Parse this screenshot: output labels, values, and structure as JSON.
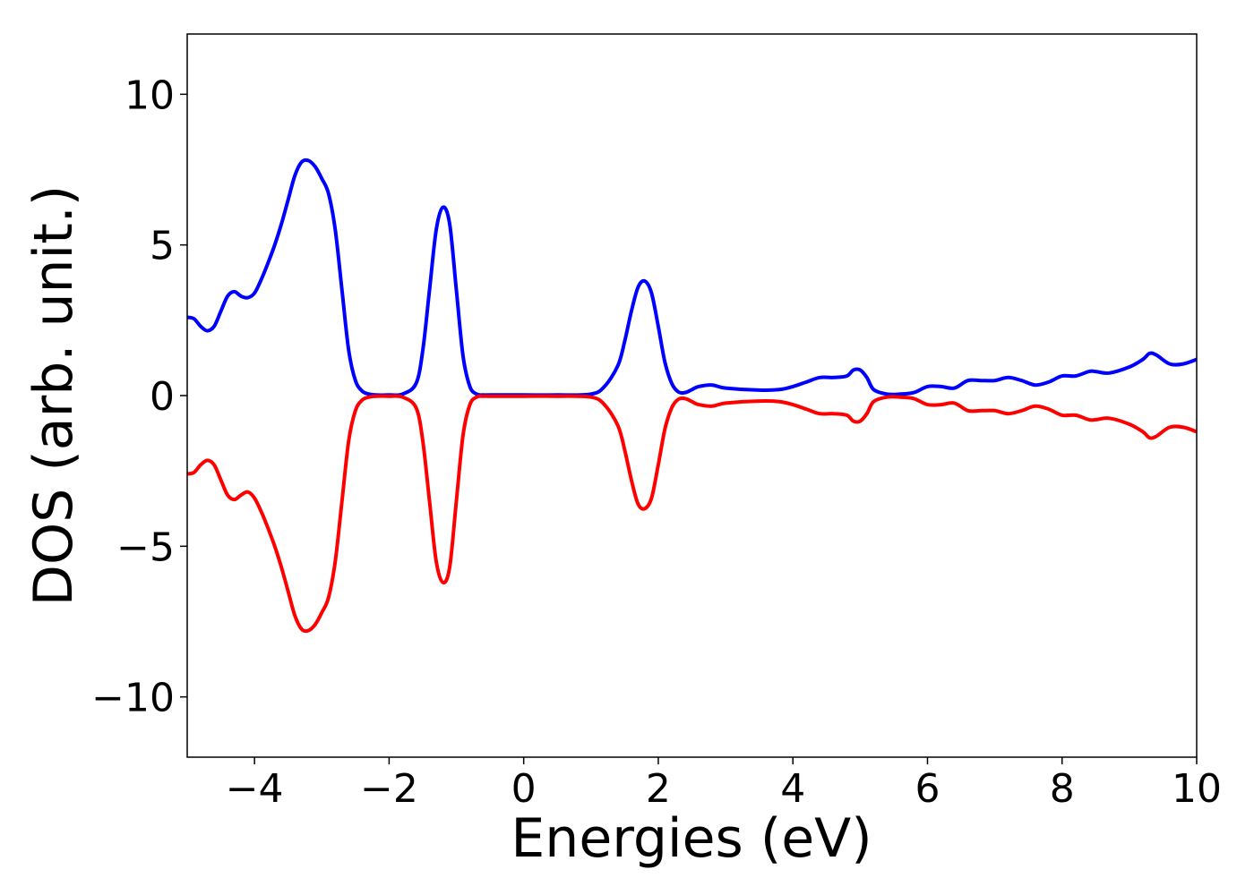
{
  "chart_data": {
    "type": "line",
    "title": "",
    "xlabel": "Energies (eV)",
    "ylabel": "DOS (arb. unit.)",
    "xlim": [
      -5,
      10
    ],
    "ylim": [
      -12,
      12
    ],
    "xticks": [
      -4,
      -2,
      0,
      2,
      4,
      6,
      8,
      10
    ],
    "xtick_labels": [
      "−4",
      "−2",
      "0",
      "2",
      "4",
      "6",
      "8",
      "10"
    ],
    "yticks": [
      -10,
      -5,
      0,
      5,
      10
    ],
    "ytick_labels": [
      "−10",
      "−5",
      "0",
      "5",
      "10"
    ],
    "grid": false,
    "series": [
      {
        "color": "#0000ff",
        "x": [
          -5.0,
          -4.9,
          -4.8,
          -4.7,
          -4.6,
          -4.5,
          -4.4,
          -4.3,
          -4.2,
          -4.1,
          -4.0,
          -3.9,
          -3.8,
          -3.7,
          -3.6,
          -3.5,
          -3.4,
          -3.3,
          -3.2,
          -3.1,
          -3.0,
          -2.9,
          -2.8,
          -2.7,
          -2.6,
          -2.5,
          -2.4,
          -2.3,
          -2.2,
          -2.0,
          -1.8,
          -1.6,
          -1.5,
          -1.4,
          -1.3,
          -1.2,
          -1.1,
          -1.0,
          -0.9,
          -0.8,
          -0.7,
          -0.6,
          -0.5,
          0.0,
          0.5,
          1.0,
          1.2,
          1.4,
          1.5,
          1.6,
          1.7,
          1.8,
          1.9,
          2.0,
          2.1,
          2.2,
          2.3,
          2.4,
          2.5,
          2.6,
          2.8,
          3.0,
          3.5,
          3.8,
          4.0,
          4.2,
          4.4,
          4.6,
          4.8,
          4.9,
          5.0,
          5.1,
          5.2,
          5.4,
          5.6,
          5.8,
          6.0,
          6.2,
          6.4,
          6.6,
          6.8,
          7.0,
          7.2,
          7.4,
          7.6,
          7.8,
          8.0,
          8.2,
          8.4,
          8.5,
          8.7,
          9.0,
          9.2,
          9.3,
          9.4,
          9.6,
          9.8,
          10.0
        ],
        "y": [
          2.6,
          2.55,
          2.3,
          2.15,
          2.3,
          2.8,
          3.3,
          3.45,
          3.3,
          3.25,
          3.4,
          3.85,
          4.4,
          5.0,
          5.7,
          6.5,
          7.3,
          7.75,
          7.8,
          7.6,
          7.2,
          6.7,
          5.5,
          3.5,
          1.5,
          0.5,
          0.15,
          0.05,
          0.02,
          0.02,
          0.05,
          0.4,
          1.5,
          3.5,
          5.5,
          6.25,
          5.7,
          3.5,
          1.3,
          0.3,
          0.05,
          0.02,
          0.02,
          0.02,
          0.02,
          0.05,
          0.3,
          1.0,
          1.8,
          2.8,
          3.6,
          3.8,
          3.4,
          2.3,
          1.1,
          0.4,
          0.12,
          0.1,
          0.2,
          0.3,
          0.35,
          0.25,
          0.18,
          0.2,
          0.3,
          0.45,
          0.6,
          0.6,
          0.65,
          0.85,
          0.85,
          0.6,
          0.2,
          0.05,
          0.05,
          0.1,
          0.3,
          0.3,
          0.25,
          0.5,
          0.5,
          0.5,
          0.6,
          0.5,
          0.35,
          0.45,
          0.65,
          0.65,
          0.8,
          0.8,
          0.75,
          0.95,
          1.2,
          1.4,
          1.35,
          1.05,
          1.05,
          1.2
        ]
      },
      {
        "color": "#ff0000",
        "x": [
          -5.0,
          -4.9,
          -4.8,
          -4.7,
          -4.6,
          -4.5,
          -4.4,
          -4.3,
          -4.2,
          -4.1,
          -4.0,
          -3.9,
          -3.8,
          -3.7,
          -3.6,
          -3.5,
          -3.4,
          -3.3,
          -3.2,
          -3.1,
          -3.0,
          -2.9,
          -2.8,
          -2.7,
          -2.6,
          -2.5,
          -2.4,
          -2.3,
          -2.2,
          -2.0,
          -1.8,
          -1.6,
          -1.5,
          -1.4,
          -1.3,
          -1.2,
          -1.1,
          -1.0,
          -0.9,
          -0.8,
          -0.7,
          -0.6,
          -0.5,
          0.0,
          0.5,
          1.0,
          1.2,
          1.4,
          1.5,
          1.6,
          1.7,
          1.8,
          1.9,
          2.0,
          2.1,
          2.2,
          2.3,
          2.4,
          2.5,
          2.6,
          2.8,
          3.0,
          3.5,
          3.8,
          4.0,
          4.2,
          4.4,
          4.6,
          4.8,
          4.9,
          5.0,
          5.1,
          5.2,
          5.4,
          5.6,
          5.8,
          6.0,
          6.2,
          6.4,
          6.6,
          6.8,
          7.0,
          7.2,
          7.4,
          7.6,
          7.8,
          8.0,
          8.2,
          8.4,
          8.5,
          8.7,
          9.0,
          9.2,
          9.3,
          9.4,
          9.6,
          9.8,
          10.0
        ],
        "y": [
          -2.6,
          -2.55,
          -2.3,
          -2.15,
          -2.3,
          -2.8,
          -3.3,
          -3.45,
          -3.3,
          -3.2,
          -3.4,
          -3.85,
          -4.4,
          -5.0,
          -5.7,
          -6.5,
          -7.3,
          -7.75,
          -7.8,
          -7.6,
          -7.2,
          -6.7,
          -5.5,
          -3.5,
          -1.5,
          -0.5,
          -0.15,
          -0.05,
          -0.02,
          -0.02,
          -0.05,
          -0.4,
          -1.5,
          -3.5,
          -5.5,
          -6.2,
          -5.7,
          -3.5,
          -1.3,
          -0.3,
          -0.05,
          -0.02,
          -0.02,
          -0.02,
          -0.02,
          -0.05,
          -0.3,
          -1.0,
          -1.8,
          -2.8,
          -3.6,
          -3.75,
          -3.4,
          -2.3,
          -1.1,
          -0.4,
          -0.12,
          -0.1,
          -0.2,
          -0.3,
          -0.35,
          -0.25,
          -0.18,
          -0.2,
          -0.3,
          -0.45,
          -0.6,
          -0.6,
          -0.65,
          -0.85,
          -0.85,
          -0.6,
          -0.2,
          -0.05,
          -0.05,
          -0.1,
          -0.3,
          -0.3,
          -0.25,
          -0.5,
          -0.5,
          -0.5,
          -0.6,
          -0.5,
          -0.35,
          -0.45,
          -0.65,
          -0.65,
          -0.8,
          -0.8,
          -0.75,
          -0.95,
          -1.2,
          -1.4,
          -1.35,
          -1.05,
          -1.05,
          -1.2
        ]
      }
    ]
  }
}
